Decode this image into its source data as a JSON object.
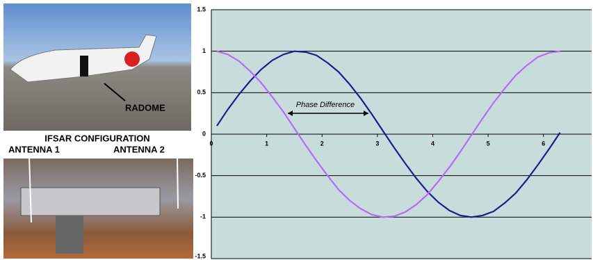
{
  "photo_labels": {
    "radome": "RADOME",
    "configuration": "IFSAR CONFIGURATION",
    "antenna_1": "ANTENNA 1",
    "antenna_2": "ANTENNA 2"
  },
  "chart_data": {
    "type": "line",
    "x": [
      0.1,
      0.3,
      0.5,
      0.7,
      0.9,
      1.1,
      1.3,
      1.5,
      1.7,
      1.9,
      2.1,
      2.3,
      2.5,
      2.7,
      2.9,
      3.1,
      3.3,
      3.5,
      3.7,
      3.9,
      4.1,
      4.3,
      4.5,
      4.7,
      4.9,
      5.1,
      5.3,
      5.5,
      5.7,
      5.9,
      6.1,
      6.3
    ],
    "series": [
      {
        "color": "#1c1c8c",
        "values": [
          0.1,
          0.3,
          0.48,
          0.64,
          0.78,
          0.89,
          0.96,
          1.0,
          0.99,
          0.95,
          0.86,
          0.75,
          0.6,
          0.43,
          0.24,
          0.04,
          -0.16,
          -0.35,
          -0.53,
          -0.69,
          -0.82,
          -0.92,
          -0.98,
          -1.0,
          -0.98,
          -0.93,
          -0.83,
          -0.71,
          -0.55,
          -0.37,
          -0.18,
          0.02
        ]
      },
      {
        "color": "#b56cf5",
        "values": [
          1.0,
          0.96,
          0.88,
          0.76,
          0.62,
          0.45,
          0.27,
          0.07,
          -0.13,
          -0.32,
          -0.5,
          -0.67,
          -0.8,
          -0.9,
          -0.97,
          -1.0,
          -0.99,
          -0.94,
          -0.85,
          -0.73,
          -0.57,
          -0.4,
          -0.21,
          -0.01,
          0.19,
          0.38,
          0.55,
          0.71,
          0.83,
          0.93,
          0.98,
          1.0
        ]
      }
    ],
    "annotation": "Phase Difference",
    "xlim": [
      0,
      6.87
    ],
    "xticks": [
      0,
      1,
      2,
      3,
      4,
      5,
      6
    ],
    "ylim": [
      -1.5,
      1.5
    ],
    "yticks": [
      1.5,
      1,
      0.5,
      0,
      -0.5,
      -1,
      -1.5
    ],
    "grid": true,
    "background": "#c9dcdc"
  }
}
